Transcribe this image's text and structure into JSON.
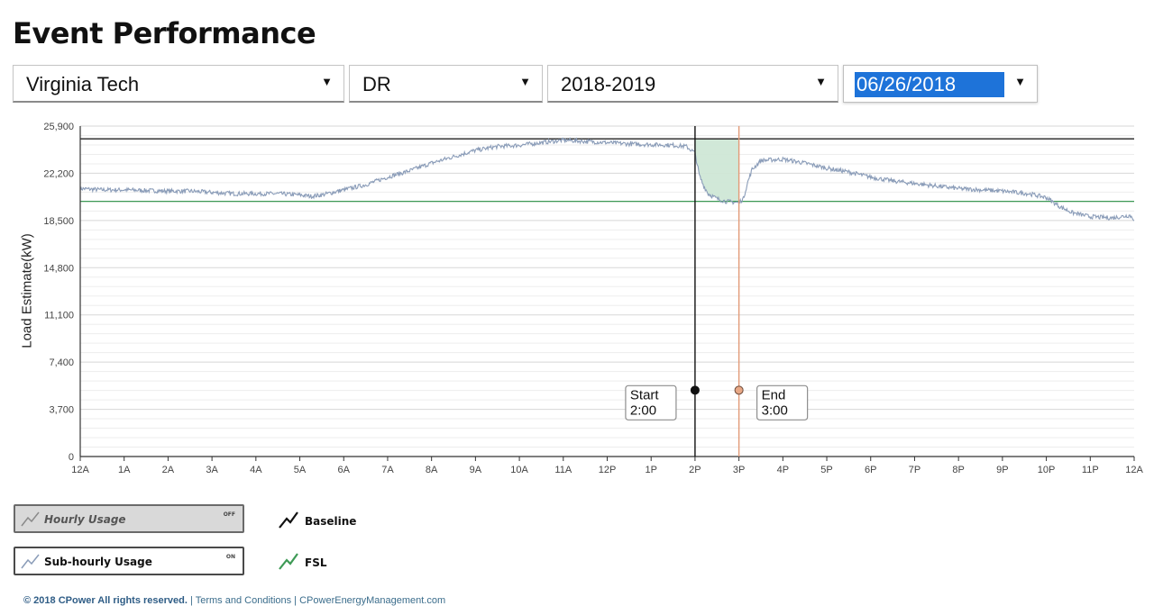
{
  "page": {
    "title": "Event Performance"
  },
  "filters": {
    "site": "Virginia Tech",
    "program": "DR",
    "season": "2018-2019",
    "date": "06/26/2018",
    "arrow": "▼"
  },
  "chart_data": {
    "type": "line",
    "title": "",
    "xlabel": "",
    "ylabel": "Load Estimate(kW)",
    "ylim": [
      0,
      25900
    ],
    "yticks": [
      0,
      3700,
      7400,
      11100,
      14800,
      18500,
      22200,
      25900
    ],
    "ytick_labels": [
      "0",
      "3,700",
      "7,400",
      "11,100",
      "14,800",
      "18,500",
      "22,200",
      "25,900"
    ],
    "xticks_hours": [
      0,
      1,
      2,
      3,
      4,
      5,
      6,
      7,
      8,
      9,
      10,
      11,
      12,
      13,
      14,
      15,
      16,
      17,
      18,
      19,
      20,
      21,
      22,
      23,
      24
    ],
    "xtick_labels": [
      "12A",
      "1A",
      "2A",
      "3A",
      "4A",
      "5A",
      "6A",
      "7A",
      "8A",
      "9A",
      "10A",
      "11A",
      "12P",
      "1P",
      "2P",
      "3P",
      "4P",
      "5P",
      "6P",
      "7P",
      "8P",
      "9P",
      "10P",
      "11P",
      "12A"
    ],
    "grid": true,
    "series": [
      {
        "name": "Sub-hourly Usage",
        "color": "#8a9cb8",
        "x": [
          0,
          0.5,
          1,
          1.5,
          2,
          2.5,
          3,
          3.5,
          4,
          4.5,
          5,
          5.25,
          5.5,
          6,
          6.5,
          7,
          7.5,
          8,
          8.5,
          9,
          9.5,
          10,
          10.5,
          11,
          11.5,
          12,
          12.5,
          13,
          13.5,
          13.8,
          14,
          14.1,
          14.2,
          14.3,
          14.5,
          14.7,
          15,
          15.1,
          15.2,
          15.3,
          15.5,
          16,
          16.5,
          17,
          17.5,
          18,
          18.5,
          19,
          19.5,
          20,
          20.5,
          21,
          21.3,
          21.6,
          22,
          22.3,
          22.6,
          23,
          23.5,
          23.9,
          24
        ],
        "y": [
          21000,
          20900,
          20900,
          20850,
          20800,
          20800,
          20700,
          20600,
          20600,
          20600,
          20500,
          20400,
          20500,
          20900,
          21300,
          21900,
          22400,
          23000,
          23500,
          24000,
          24300,
          24400,
          24600,
          24800,
          24700,
          24600,
          24500,
          24450,
          24400,
          24300,
          23800,
          22000,
          21200,
          20600,
          20200,
          20000,
          19900,
          20200,
          21500,
          22500,
          23200,
          23300,
          23000,
          22600,
          22300,
          21900,
          21600,
          21400,
          21200,
          21000,
          20900,
          20800,
          20700,
          20600,
          20300,
          19600,
          19100,
          18800,
          18700,
          18900,
          18600
        ]
      },
      {
        "name": "Baseline",
        "color": "#222222",
        "value": 24900
      },
      {
        "name": "FSL",
        "color": "#3e9a56",
        "value": 20000
      }
    ],
    "event": {
      "start_hour": 14,
      "end_hour": 15,
      "marker_value": 5200,
      "start_label_1": "Start",
      "start_label_2": "2:00",
      "end_label_1": "End",
      "end_label_2": "3:00",
      "start_color": "#111111",
      "end_color": "#e29a78",
      "fill_color": "#cfe7d6"
    }
  },
  "legend": {
    "hourly_label": "Hourly Usage",
    "hourly_state": "OFF",
    "subhourly_label": "Sub-hourly Usage",
    "subhourly_state": "ON",
    "baseline_label": "Baseline",
    "fsl_label": "FSL"
  },
  "footer": {
    "copyright": "© 2018 CPower All rights reserved.",
    "sep1": " | ",
    "terms": "Terms and Conditions",
    "sep2": " | ",
    "site": "CPowerEnergyManagement.com"
  }
}
